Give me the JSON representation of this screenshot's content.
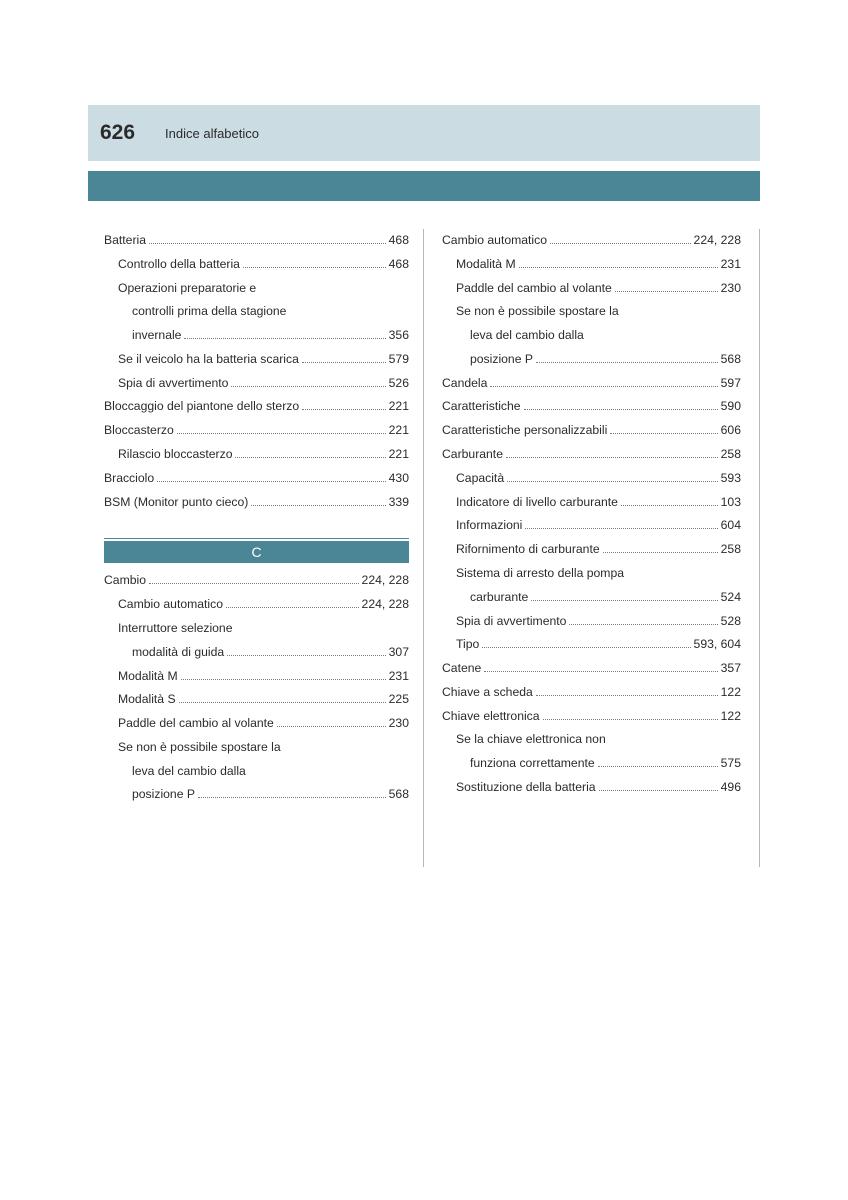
{
  "header": {
    "page_number": "626",
    "title": "Indice alfabetico"
  },
  "colors": {
    "header_band": "#cbdce3",
    "teal_band": "#4a8696",
    "text": "#2b2b2b",
    "rule": "#b8b8b8",
    "dots": "#7a7a7a",
    "background": "#ffffff"
  },
  "left": {
    "block1": [
      {
        "label": "Batteria",
        "page": "468",
        "indent": 0
      },
      {
        "label": "Controllo della batteria",
        "page": "468",
        "indent": 1
      },
      {
        "label_lines": [
          "Operazioni preparatorie e",
          "controlli prima della stagione",
          "invernale"
        ],
        "page": "356",
        "indent": 1
      },
      {
        "label": "Se il veicolo ha la batteria scarica",
        "page": "579",
        "indent": 1
      },
      {
        "label": "Spia di avvertimento",
        "page": "526",
        "indent": 1
      },
      {
        "label": "Bloccaggio del piantone dello sterzo",
        "page": "221",
        "indent": 0
      },
      {
        "label": "Bloccasterzo",
        "page": "221",
        "indent": 0
      },
      {
        "label": "Rilascio bloccasterzo",
        "page": "221",
        "indent": 1
      },
      {
        "label": "Bracciolo",
        "page": "430",
        "indent": 0
      },
      {
        "label": "BSM (Monitor punto cieco)",
        "page": "339",
        "indent": 0
      }
    ],
    "section_letter": "C",
    "block2": [
      {
        "label": "Cambio",
        "page": "224, 228",
        "indent": 0
      },
      {
        "label": "Cambio automatico",
        "page": "224, 228",
        "indent": 1
      },
      {
        "label_lines": [
          "Interruttore selezione",
          "modalità di guida"
        ],
        "page": "307",
        "indent": 1
      },
      {
        "label": "Modalità M",
        "page": "231",
        "indent": 1
      },
      {
        "label": "Modalità S",
        "page": "225",
        "indent": 1
      },
      {
        "label": "Paddle del cambio al volante",
        "page": "230",
        "indent": 1
      },
      {
        "label_lines": [
          "Se non è possibile spostare la",
          "leva del cambio dalla",
          "posizione P"
        ],
        "page": "568",
        "indent": 1
      }
    ]
  },
  "right": {
    "block": [
      {
        "label": "Cambio automatico",
        "page": "224, 228",
        "indent": 0
      },
      {
        "label": "Modalità M",
        "page": "231",
        "indent": 1
      },
      {
        "label": "Paddle del cambio al volante",
        "page": "230",
        "indent": 1
      },
      {
        "label_lines": [
          "Se non è possibile spostare la",
          "leva del cambio dalla",
          "posizione P"
        ],
        "page": "568",
        "indent": 1
      },
      {
        "label": "Candela",
        "page": "597",
        "indent": 0
      },
      {
        "label": "Caratteristiche",
        "page": "590",
        "indent": 0
      },
      {
        "label": "Caratteristiche personalizzabili",
        "page": "606",
        "indent": 0
      },
      {
        "label": "Carburante",
        "page": "258",
        "indent": 0
      },
      {
        "label": "Capacità",
        "page": "593",
        "indent": 1
      },
      {
        "label": "Indicatore di livello carburante",
        "page": "103",
        "indent": 1
      },
      {
        "label": "Informazioni",
        "page": "604",
        "indent": 1
      },
      {
        "label": "Rifornimento di carburante",
        "page": "258",
        "indent": 1
      },
      {
        "label_lines": [
          "Sistema di arresto della pompa",
          "carburante"
        ],
        "page": "524",
        "indent": 1
      },
      {
        "label": "Spia di avvertimento",
        "page": "528",
        "indent": 1
      },
      {
        "label": "Tipo",
        "page": "593, 604",
        "indent": 1
      },
      {
        "label": "Catene",
        "page": "357",
        "indent": 0
      },
      {
        "label": "Chiave a scheda",
        "page": "122",
        "indent": 0
      },
      {
        "label": "Chiave elettronica",
        "page": "122",
        "indent": 0
      },
      {
        "label_lines": [
          "Se la chiave elettronica non",
          "funziona correttamente"
        ],
        "page": "575",
        "indent": 1
      },
      {
        "label": "Sostituzione della batteria",
        "page": "496",
        "indent": 1
      }
    ]
  }
}
